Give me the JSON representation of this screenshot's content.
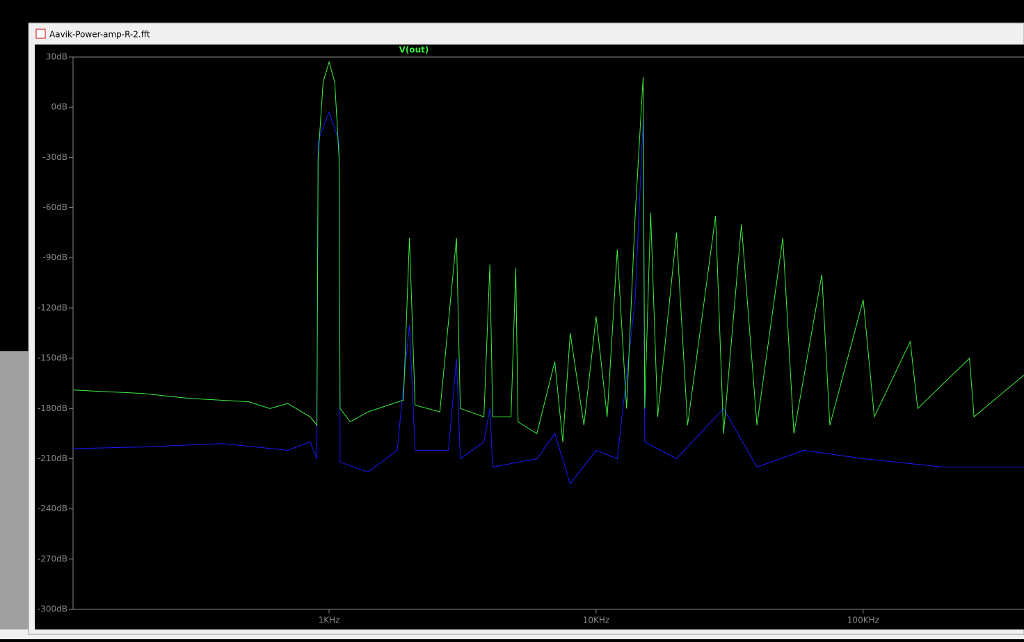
{
  "window": {
    "title": "Aavik-Power-amp-R-2.fft"
  },
  "chart_data": {
    "type": "line",
    "xscale": "log",
    "xlim": [
      110,
      400000
    ],
    "ylim": [
      -300,
      30
    ],
    "xticks": [
      {
        "value": 1000,
        "label": "1KHz"
      },
      {
        "value": 10000,
        "label": "10KHz"
      },
      {
        "value": 100000,
        "label": "100KHz"
      }
    ],
    "yticks": [
      {
        "value": -300,
        "label": "-300dB"
      },
      {
        "value": -270,
        "label": "-270dB"
      },
      {
        "value": -240,
        "label": "-240dB"
      },
      {
        "value": -210,
        "label": "-210dB"
      },
      {
        "value": -180,
        "label": "-180dB"
      },
      {
        "value": -150,
        "label": "-150dB"
      },
      {
        "value": -120,
        "label": "-120dB"
      },
      {
        "value": -90,
        "label": "-90dB"
      },
      {
        "value": -60,
        "label": "-60dB"
      },
      {
        "value": -30,
        "label": "-30dB"
      },
      {
        "value": 0,
        "label": "0dB"
      },
      {
        "value": 30,
        "label": "30dB"
      }
    ],
    "series": [
      {
        "name": "V(out)",
        "color": "#3cf03c",
        "x": [
          110,
          200,
          300,
          500,
          600,
          700,
          850,
          900,
          910,
          950,
          1000,
          1050,
          1090,
          1100,
          1200,
          1400,
          1900,
          2000,
          2100,
          2600,
          3000,
          3100,
          3800,
          4000,
          4100,
          4800,
          5000,
          5100,
          6000,
          7000,
          7500,
          8000,
          9000,
          10000,
          11000,
          12000,
          13000,
          14000,
          15000,
          15200,
          16000,
          17000,
          20000,
          22000,
          28000,
          30000,
          35000,
          40000,
          50000,
          55000,
          70000,
          75000,
          100000,
          110000,
          150000,
          160000,
          250000,
          260000,
          400000
        ],
        "values": [
          -169,
          -171,
          -174,
          -176,
          -180,
          -177,
          -185,
          -190,
          -30,
          15,
          27,
          15,
          -30,
          -180,
          -188,
          -182,
          -175,
          -78,
          -178,
          -182,
          -78,
          -180,
          -185,
          -94,
          -185,
          -185,
          -96,
          -188,
          -195,
          -152,
          -200,
          -135,
          -190,
          -125,
          -185,
          -85,
          -180,
          -65,
          18,
          -180,
          -63,
          -185,
          -75,
          -190,
          -65,
          -195,
          -70,
          -190,
          -78,
          -195,
          -100,
          -190,
          -115,
          -185,
          -140,
          -180,
          -150,
          -185,
          -160
        ]
      },
      {
        "color": "#1a1aff",
        "x": [
          110,
          200,
          400,
          700,
          850,
          900,
          910,
          1000,
          1090,
          1100,
          1400,
          1800,
          2000,
          2100,
          2800,
          3000,
          3100,
          3800,
          4000,
          4100,
          6000,
          7000,
          8000,
          10000,
          12000,
          14000,
          15000,
          15200,
          20000,
          30000,
          40000,
          60000,
          100000,
          200000,
          400000
        ],
        "values": [
          -204,
          -203,
          -201,
          -205,
          -200,
          -210,
          -20,
          -3,
          -20,
          -212,
          -218,
          -205,
          -130,
          -205,
          -205,
          -150,
          -210,
          -200,
          -180,
          -215,
          -210,
          -195,
          -225,
          -205,
          -210,
          -115,
          -8,
          -200,
          -210,
          -180,
          -215,
          -205,
          -210,
          -215,
          -215
        ]
      }
    ]
  }
}
